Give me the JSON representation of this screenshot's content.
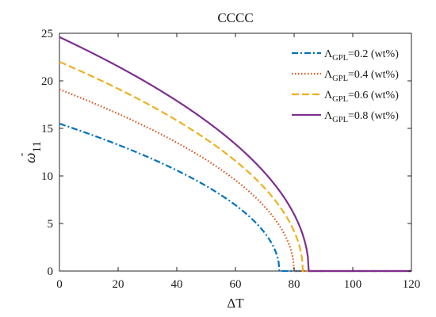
{
  "chart_data": {
    "type": "line",
    "title": "CCCC",
    "xlabel": "ΔT",
    "ylabel": {
      "base": "ω",
      "accent": "-",
      "sub": "11"
    },
    "xlim": [
      0,
      120
    ],
    "ylim": [
      0,
      25
    ],
    "xticks": [
      0,
      20,
      40,
      60,
      80,
      100,
      120
    ],
    "yticks": [
      0,
      5,
      10,
      15,
      20,
      25
    ],
    "grid": false,
    "legend_position": "top-right",
    "series": [
      {
        "name": "Λ",
        "legend_sub": "GPL",
        "legend_rest": "=0.2 (wt%)",
        "color": "#0072BD",
        "dash": "dashdot",
        "omega0": 15.5,
        "critical_dT": 75,
        "x": [
          0,
          10,
          20,
          30,
          40,
          50,
          60,
          65,
          70,
          72,
          74,
          75,
          80,
          90,
          100,
          110,
          120
        ],
        "y": [
          15.5,
          14.4,
          13.2,
          12.0,
          10.6,
          9.0,
          7.1,
          6.0,
          4.6,
          3.8,
          2.2,
          0,
          0,
          0,
          0,
          0,
          0
        ]
      },
      {
        "name": "Λ",
        "legend_sub": "GPL",
        "legend_rest": "=0.4 (wt%)",
        "color": "#D95319",
        "dash": "dotted",
        "omega0": 19.1,
        "critical_dT": 80,
        "x": [
          0,
          10,
          20,
          30,
          40,
          50,
          60,
          70,
          74,
          77,
          79,
          80,
          90,
          100,
          110,
          120
        ],
        "y": [
          19.1,
          17.9,
          16.6,
          15.1,
          13.5,
          11.8,
          9.7,
          6.9,
          5.3,
          3.7,
          2.1,
          0,
          0,
          0,
          0,
          0
        ]
      },
      {
        "name": "Λ",
        "legend_sub": "GPL",
        "legend_rest": "=0.6 (wt%)",
        "color": "#EDB120",
        "dash": "dashed",
        "omega0": 22.0,
        "critical_dT": 83,
        "x": [
          0,
          10,
          20,
          30,
          40,
          50,
          60,
          70,
          75,
          80,
          82,
          83,
          90,
          100,
          110,
          120
        ],
        "y": [
          22.0,
          20.7,
          19.3,
          17.7,
          15.9,
          13.9,
          11.5,
          8.6,
          6.6,
          3.8,
          2.1,
          0,
          0,
          0,
          0,
          0
        ]
      },
      {
        "name": "Λ",
        "legend_sub": "GPL",
        "legend_rest": "=0.8 (wt%)",
        "color": "#7E2F8E",
        "dash": "solid",
        "omega0": 24.6,
        "critical_dT": 85,
        "x": [
          0,
          10,
          20,
          30,
          40,
          50,
          60,
          70,
          75,
          80,
          83,
          84,
          85,
          90,
          100,
          110,
          120
        ],
        "y": [
          24.6,
          23.2,
          21.6,
          19.9,
          18.0,
          15.8,
          13.3,
          10.2,
          8.3,
          5.6,
          3.3,
          2.2,
          0,
          0,
          0,
          0,
          0
        ]
      }
    ]
  }
}
